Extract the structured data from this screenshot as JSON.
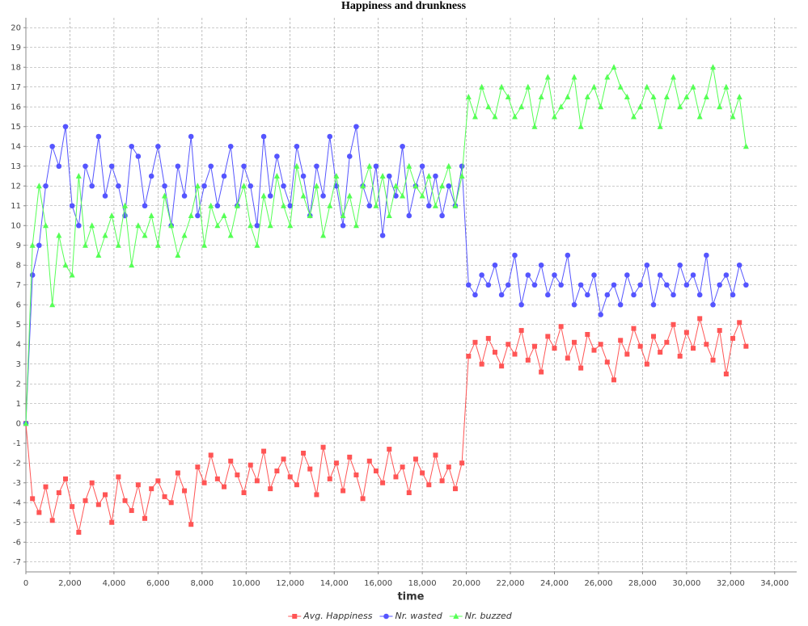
{
  "chart_data": {
    "type": "line",
    "title": "Happiness and drunkness",
    "x_label": "time",
    "x": [
      0,
      300,
      600,
      900,
      1200,
      1500,
      1800,
      2100,
      2400,
      2700,
      3000,
      3300,
      3600,
      3900,
      4200,
      4500,
      4800,
      5100,
      5400,
      5700,
      6000,
      6300,
      6600,
      6900,
      7200,
      7500,
      7800,
      8100,
      8400,
      8700,
      9000,
      9300,
      9600,
      9900,
      10200,
      10500,
      10800,
      11100,
      11400,
      11700,
      12000,
      12300,
      12600,
      12900,
      13200,
      13500,
      13800,
      14100,
      14400,
      14700,
      15000,
      15300,
      15600,
      15900,
      16200,
      16500,
      16800,
      17100,
      17400,
      17700,
      18000,
      18300,
      18600,
      18900,
      19200,
      19500,
      19800,
      20100,
      20400,
      20700,
      21000,
      21300,
      21600,
      21900,
      22200,
      22500,
      22800,
      23100,
      23400,
      23700,
      24000,
      24300,
      24600,
      24900,
      25200,
      25500,
      25800,
      26100,
      26400,
      26700,
      27000,
      27300,
      27600,
      27900,
      28200,
      28500,
      28800,
      29100,
      29400,
      29700,
      30000,
      30300,
      30600,
      30900,
      31200,
      31500,
      31800,
      32100,
      32400,
      32700
    ],
    "series": [
      {
        "name": "Avg. Happiness",
        "color": "#ff5555",
        "marker": "square",
        "values": [
          0,
          -3.8,
          -4.5,
          -3.2,
          -4.9,
          -3.5,
          -2.8,
          -4.2,
          -5.5,
          -3.9,
          -3.0,
          -4.1,
          -3.6,
          -5.0,
          -2.7,
          -3.9,
          -4.4,
          -3.1,
          -4.8,
          -3.3,
          -2.9,
          -3.7,
          -4.0,
          -2.5,
          -3.4,
          -5.1,
          -2.2,
          -3.0,
          -1.6,
          -2.8,
          -3.2,
          -1.9,
          -2.6,
          -3.5,
          -2.1,
          -2.9,
          -1.4,
          -3.3,
          -2.4,
          -1.8,
          -2.7,
          -3.1,
          -1.5,
          -2.3,
          -3.6,
          -1.2,
          -2.8,
          -2.0,
          -3.4,
          -1.7,
          -2.6,
          -3.8,
          -1.9,
          -2.4,
          -3.0,
          -1.3,
          -2.7,
          -2.2,
          -3.5,
          -1.8,
          -2.5,
          -3.1,
          -1.6,
          -2.9,
          -2.2,
          -3.3,
          -2.0,
          3.4,
          4.1,
          3.0,
          4.3,
          3.6,
          2.9,
          4.0,
          3.5,
          4.7,
          3.2,
          3.9,
          2.6,
          4.4,
          3.8,
          4.9,
          3.3,
          4.1,
          2.8,
          4.5,
          3.7,
          4.0,
          3.1,
          2.2,
          4.2,
          3.5,
          4.8,
          3.9,
          3.0,
          4.4,
          3.6,
          4.1,
          5.0,
          3.4,
          4.6,
          3.8,
          5.3,
          4.0,
          3.2,
          4.7,
          2.5,
          4.3,
          5.1,
          3.9
        ]
      },
      {
        "name": "Nr. wasted",
        "color": "#5555ff",
        "marker": "circle",
        "values": [
          0,
          7.5,
          9,
          12,
          14,
          13,
          15,
          11,
          10,
          13,
          12,
          14.5,
          11.5,
          13,
          12,
          10.5,
          14,
          13.5,
          11,
          12.5,
          14,
          12,
          10,
          13,
          11.5,
          14.5,
          10.5,
          12,
          13,
          11,
          12.5,
          14,
          11,
          13,
          12,
          10,
          14.5,
          11.5,
          13.5,
          12,
          11,
          14,
          12.5,
          10.5,
          13,
          11.5,
          14.5,
          12,
          10,
          13.5,
          15,
          12,
          11,
          13,
          9.5,
          12.5,
          11.5,
          14,
          10.5,
          12,
          13,
          11,
          12.5,
          10.5,
          12,
          11,
          13,
          7,
          6.5,
          7.5,
          7,
          8,
          6.5,
          7,
          8.5,
          6,
          7.5,
          7,
          8,
          6.5,
          7.5,
          7,
          8.5,
          6,
          7,
          6.5,
          7.5,
          5.5,
          6.5,
          7,
          6,
          7.5,
          6.5,
          7,
          8,
          6,
          7.5,
          7,
          6.5,
          8,
          7,
          7.5,
          6.5,
          8.5,
          6,
          7,
          7.5,
          6.5,
          8,
          7
        ]
      },
      {
        "name": "Nr. buzzed",
        "color": "#55ff55",
        "marker": "triangle",
        "values": [
          0,
          9,
          12,
          10,
          6,
          9.5,
          8,
          7.5,
          12.5,
          9,
          10,
          8.5,
          9.5,
          10.5,
          9,
          11,
          8,
          10,
          9.5,
          10.5,
          9,
          11.5,
          10,
          8.5,
          9.5,
          10.5,
          12,
          9,
          11,
          10,
          10.5,
          9.5,
          11,
          12,
          10,
          9,
          11.5,
          10,
          12.5,
          11,
          10,
          13,
          11.5,
          10.5,
          12,
          9.5,
          11,
          12.5,
          10.5,
          11.5,
          10,
          12,
          13,
          11,
          12.5,
          10.5,
          12,
          11.5,
          13,
          12,
          11.5,
          12.5,
          11,
          12,
          13,
          11,
          12.5,
          16.5,
          15.5,
          17,
          16,
          15.5,
          17,
          16.5,
          15.5,
          16,
          17,
          15,
          16.5,
          17.5,
          15.5,
          16,
          16.5,
          17.5,
          15,
          16.5,
          17,
          16,
          17.5,
          18,
          17,
          16.5,
          15.5,
          16,
          17,
          16.5,
          15,
          16.5,
          17.5,
          16,
          16.5,
          17,
          15.5,
          16.5,
          18,
          16,
          17,
          15.5,
          16.5,
          14
        ]
      }
    ],
    "xlim": [
      0,
      35000
    ],
    "xticks": [
      0,
      {
        "value": 2000,
        "label": "2,000"
      },
      {
        "value": 4000,
        "label": "4,000"
      },
      {
        "value": 6000,
        "label": "6,000"
      },
      {
        "value": 8000,
        "label": "8,000"
      },
      {
        "value": 10000,
        "label": "10,000"
      },
      {
        "value": 12000,
        "label": "12,000"
      },
      {
        "value": 14000,
        "label": "14,000"
      },
      {
        "value": 16000,
        "label": "16,000"
      },
      {
        "value": 18000,
        "label": "18,000"
      },
      {
        "value": 20000,
        "label": "20,000"
      },
      {
        "value": 22000,
        "label": "22,000"
      },
      {
        "value": 24000,
        "label": "24,000"
      },
      {
        "value": 26000,
        "label": "26,000"
      },
      {
        "value": 28000,
        "label": "28,000"
      },
      {
        "value": 30000,
        "label": "30,000"
      },
      {
        "value": 32000,
        "label": "32,000"
      },
      {
        "value": 34000,
        "label": "34,000"
      }
    ],
    "ylim": [
      -7.5,
      20.5
    ],
    "yticks": [
      -7,
      -6,
      -5,
      -4,
      -3,
      -2,
      -1,
      0,
      1,
      2,
      3,
      4,
      5,
      6,
      7,
      8,
      9,
      10,
      11,
      12,
      13,
      14,
      15,
      16,
      17,
      18,
      19,
      20
    ],
    "grid": true,
    "legend": "bottom"
  }
}
